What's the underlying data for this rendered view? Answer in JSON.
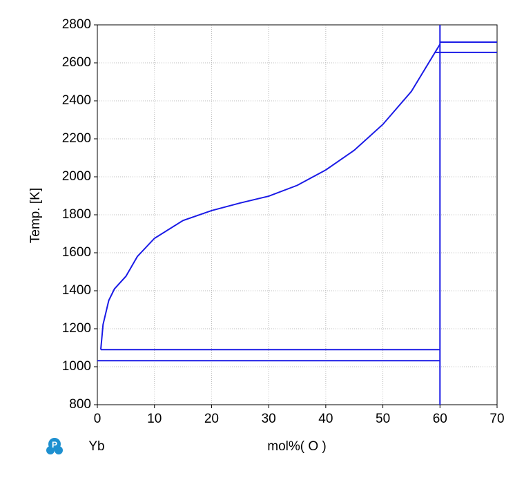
{
  "chart_data": {
    "type": "line",
    "y_label": "Temp. [K]",
    "x_label": "mol%(  O  )",
    "left_component": "Yb",
    "xlim": [
      0,
      70
    ],
    "xticks": [
      0,
      10,
      20,
      30,
      40,
      50,
      60,
      70
    ],
    "ylim": [
      800,
      2800
    ],
    "yticks": [
      800,
      1000,
      1200,
      1400,
      1600,
      1800,
      2000,
      2200,
      2400,
      2600,
      2800
    ],
    "grid": true,
    "series": [
      {
        "color": "#1a1ae6",
        "x": [
          0.6,
          1,
          2,
          3,
          5,
          7,
          10,
          15,
          20,
          25,
          30,
          35,
          40,
          45,
          50,
          55,
          60
        ],
        "values": [
          1090,
          1222,
          1349,
          1410,
          1476,
          1580,
          1676,
          1770,
          1822,
          1862,
          1898,
          1955,
          2036,
          2140,
          2276,
          2450,
          2698
        ]
      },
      {
        "color": "#1a1ae6",
        "x": [
          0.6,
          60
        ],
        "values": [
          1090,
          1090
        ]
      },
      {
        "color": "#1a1ae6",
        "x": [
          0,
          60
        ],
        "values": [
          1032,
          1032
        ]
      },
      {
        "color": "#1a1ae6",
        "x": [
          60,
          60
        ],
        "values": [
          800,
          2800
        ]
      },
      {
        "color": "#1a1ae6",
        "x": [
          60,
          70
        ],
        "values": [
          2709,
          2709
        ]
      },
      {
        "color": "#1a1ae6",
        "x": [
          59.2,
          70
        ],
        "values": [
          2655,
          2655
        ]
      }
    ]
  }
}
